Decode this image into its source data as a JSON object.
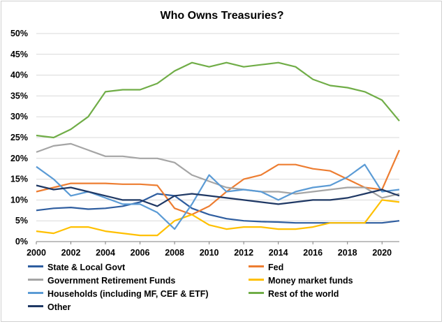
{
  "chart_data": {
    "type": "line",
    "title": "Who Owns Treasuries?",
    "xlim": [
      2000,
      2021
    ],
    "ylim": [
      0,
      50
    ],
    "x_ticks": [
      "2000",
      "2002",
      "2004",
      "2006",
      "2008",
      "2010",
      "2012",
      "2014",
      "2016",
      "2018",
      "2020"
    ],
    "y_ticks": [
      "0%",
      "5%",
      "10%",
      "15%",
      "20%",
      "25%",
      "30%",
      "35%",
      "40%",
      "45%",
      "50%"
    ],
    "grid": "horizontal",
    "legend_position": "bottom",
    "x": [
      2000,
      2001,
      2002,
      2003,
      2004,
      2005,
      2006,
      2007,
      2008,
      2009,
      2010,
      2011,
      2012,
      2013,
      2014,
      2015,
      2016,
      2017,
      2018,
      2019,
      2020,
      2021
    ],
    "series": [
      {
        "name": "State & Local Govt",
        "color": "#2e5d9f",
        "values": [
          7.5,
          8,
          8.2,
          7.8,
          8,
          8.5,
          9.5,
          11.5,
          11,
          8,
          6.5,
          5.5,
          5,
          4.8,
          4.7,
          4.5,
          4.5,
          4.5,
          4.5,
          4.5,
          4.5,
          5
        ]
      },
      {
        "name": "Fed",
        "color": "#ed7d31",
        "values": [
          12,
          13,
          14,
          14,
          14,
          13.8,
          13.8,
          13.5,
          8,
          6.5,
          8.5,
          12,
          15,
          16,
          18.5,
          18.5,
          17.5,
          17,
          15,
          13,
          12.5,
          22
        ]
      },
      {
        "name": "Government Retirement Funds",
        "color": "#a5a5a5",
        "values": [
          21.5,
          23,
          23.5,
          22,
          20.5,
          20.5,
          20,
          20,
          19,
          16,
          14.5,
          13,
          12.5,
          12,
          12,
          11.5,
          12,
          12.5,
          13,
          13,
          10.5,
          11.5
        ]
      },
      {
        "name": "Money market funds",
        "color": "#ffc000",
        "values": [
          2.5,
          2,
          3.5,
          3.5,
          2.5,
          2,
          1.5,
          1.5,
          5,
          6.5,
          4,
          3,
          3.5,
          3.5,
          3,
          3,
          3.5,
          4.5,
          4.5,
          4.5,
          10,
          9.5
        ]
      },
      {
        "name": "Households (including MF, CEF & ETF)",
        "color": "#5b9bd5",
        "values": [
          18,
          15,
          11,
          12,
          10.5,
          9,
          9,
          7,
          3,
          9,
          16,
          12,
          12.5,
          12,
          10,
          12,
          13,
          13.5,
          15.5,
          18.5,
          12,
          12.5
        ]
      },
      {
        "name": "Rest of the world",
        "color": "#70ad47",
        "values": [
          25.5,
          25,
          27,
          30,
          36,
          36.5,
          36.5,
          38,
          41,
          43,
          42,
          43,
          42,
          42.5,
          43,
          42,
          39,
          37.5,
          37,
          36,
          34,
          29
        ]
      },
      {
        "name": "Other",
        "color": "#1f3864",
        "values": [
          13.5,
          12.5,
          13,
          12,
          11,
          10,
          10,
          8.5,
          11,
          11.5,
          11,
          10.5,
          10,
          9.5,
          9,
          9.5,
          10,
          10,
          10.5,
          11.5,
          12.5,
          11
        ]
      }
    ]
  }
}
